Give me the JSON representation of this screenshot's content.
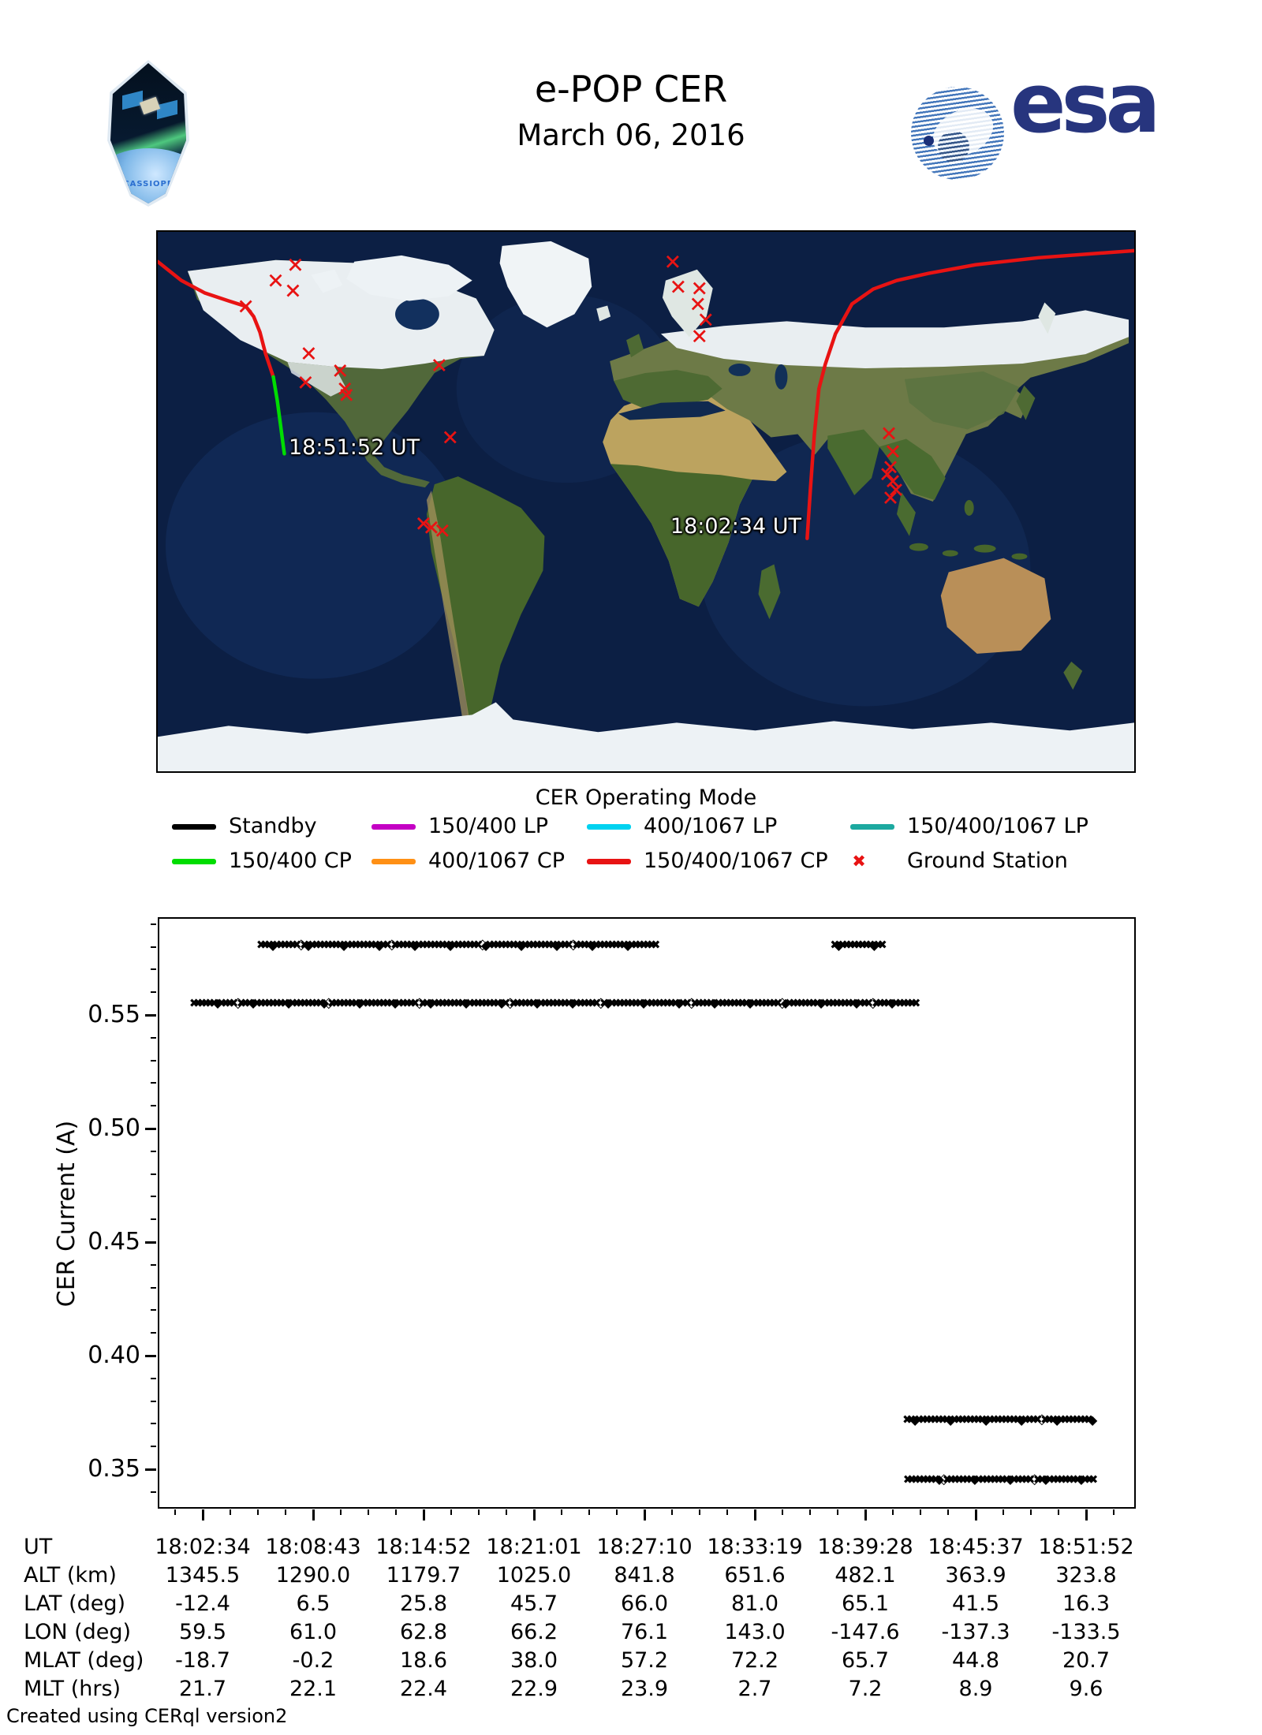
{
  "header": {
    "title": "e-POP CER",
    "date": "March 06, 2016",
    "patch_text": "CASSIOPE",
    "esa_text": "esa"
  },
  "map": {
    "caption": "CER Operating Mode",
    "annotations": [
      {
        "text": "18:51:52 UT",
        "map_x": 166,
        "map_y": 258,
        "align": "left"
      },
      {
        "text": "18:02:34 UT",
        "map_x": 820,
        "map_y": 358,
        "align": "right"
      }
    ],
    "tracks": [
      {
        "name": "orbit-track-150-400-1067-cp-west",
        "mode": "150/400/1067 CP",
        "color": "#e81313",
        "points": [
          [
            0,
            38
          ],
          [
            30,
            62
          ],
          [
            60,
            78
          ],
          [
            90,
            88
          ],
          [
            112,
            95
          ],
          [
            122,
            108
          ],
          [
            130,
            128
          ],
          [
            137,
            155
          ],
          [
            147,
            185
          ]
        ]
      },
      {
        "name": "orbit-track-150-400-cp",
        "mode": "150/400 CP",
        "color": "#00dd00",
        "points": [
          [
            147,
            185
          ],
          [
            152,
            215
          ],
          [
            156,
            245
          ],
          [
            159,
            268
          ],
          [
            161,
            283
          ]
        ]
      },
      {
        "name": "orbit-track-150-400-1067-cp-east",
        "mode": "150/400/1067 CP",
        "color": "#e81313",
        "points": [
          [
            826,
            391
          ],
          [
            830,
            330
          ],
          [
            835,
            260
          ],
          [
            841,
            200
          ],
          [
            849,
            169
          ],
          [
            862,
            130
          ],
          [
            883,
            92
          ],
          [
            910,
            73
          ],
          [
            940,
            62
          ],
          [
            980,
            53
          ],
          [
            1040,
            42
          ],
          [
            1120,
            33
          ],
          [
            1242,
            24
          ]
        ]
      }
    ],
    "stations": [
      [
        175,
        42
      ],
      [
        150,
        62
      ],
      [
        172,
        75
      ],
      [
        112,
        95
      ],
      [
        192,
        155
      ],
      [
        188,
        192
      ],
      [
        232,
        177
      ],
      [
        238,
        200
      ],
      [
        240,
        208
      ],
      [
        358,
        170
      ],
      [
        372,
        262
      ],
      [
        338,
        372
      ],
      [
        348,
        377
      ],
      [
        362,
        381
      ],
      [
        655,
        38
      ],
      [
        662,
        70
      ],
      [
        689,
        72
      ],
      [
        687,
        92
      ],
      [
        697,
        112
      ],
      [
        689,
        133
      ],
      [
        930,
        257
      ],
      [
        935,
        280
      ],
      [
        932,
        300
      ],
      [
        928,
        309
      ],
      [
        935,
        318
      ],
      [
        939,
        329
      ],
      [
        932,
        339
      ]
    ],
    "station_color": "#e81313"
  },
  "legend": {
    "rows": [
      [
        {
          "label": "Standby",
          "color": "#000000",
          "marker": "line"
        },
        {
          "label": "150/400 LP",
          "color": "#c400c4",
          "marker": "line"
        },
        {
          "label": "400/1067 LP",
          "color": "#00d2f0",
          "marker": "line"
        },
        {
          "label": "150/400/1067 LP",
          "color": "#1ca9a0",
          "marker": "line"
        }
      ],
      [
        {
          "label": "150/400 CP",
          "color": "#00dd00",
          "marker": "line"
        },
        {
          "label": "400/1067 CP",
          "color": "#ff9015",
          "marker": "line"
        },
        {
          "label": "150/400/1067 CP",
          "color": "#e81313",
          "marker": "line"
        },
        {
          "label": "Ground Station",
          "color": "#e81313",
          "marker": "x"
        }
      ]
    ]
  },
  "chart_data": {
    "type": "scatter",
    "title": "",
    "xlabel": "",
    "ylabel": "CER Current (A)",
    "ylim": [
      0.333,
      0.593
    ],
    "y_ticks": [
      0.55,
      0.5,
      0.45,
      0.4,
      0.35
    ],
    "x_tick_labels": [
      "18:02:34",
      "18:08:43",
      "18:14:52",
      "18:21:01",
      "18:27:10",
      "18:33:19",
      "18:39:28",
      "18:45:37",
      "18:51:52"
    ],
    "series_name": "Standby",
    "marker_color": "#000000",
    "bands": [
      {
        "current": 0.58,
        "start": "18:05:54",
        "end": "18:27:52"
      },
      {
        "current": 0.58,
        "start": "18:37:51",
        "end": "18:40:34"
      },
      {
        "current": 0.5545,
        "start": "18:02:10",
        "end": "18:42:33"
      },
      {
        "current": 0.371,
        "start": "18:41:53",
        "end": "18:52:15"
      },
      {
        "current": 0.3448,
        "start": "18:41:55",
        "end": "18:52:20"
      }
    ]
  },
  "table": {
    "rows": [
      {
        "label": "UT",
        "values": [
          "18:02:34",
          "18:08:43",
          "18:14:52",
          "18:21:01",
          "18:27:10",
          "18:33:19",
          "18:39:28",
          "18:45:37",
          "18:51:52"
        ]
      },
      {
        "label": "ALT (km)",
        "values": [
          "1345.5",
          "1290.0",
          "1179.7",
          "1025.0",
          "841.8",
          "651.6",
          "482.1",
          "363.9",
          "323.8"
        ]
      },
      {
        "label": "LAT (deg)",
        "values": [
          "-12.4",
          "6.5",
          "25.8",
          "45.7",
          "66.0",
          "81.0",
          "65.1",
          "41.5",
          "16.3"
        ]
      },
      {
        "label": "LON (deg)",
        "values": [
          "59.5",
          "61.0",
          "62.8",
          "66.2",
          "76.1",
          "143.0",
          "-147.6",
          "-137.3",
          "-133.5"
        ]
      },
      {
        "label": "MLAT (deg)",
        "values": [
          "-18.7",
          "-0.2",
          "18.6",
          "38.0",
          "57.2",
          "72.2",
          "65.7",
          "44.8",
          "20.7"
        ]
      },
      {
        "label": "MLT (hrs)",
        "values": [
          "21.7",
          "22.1",
          "22.4",
          "22.9",
          "23.9",
          "2.7",
          "7.2",
          "8.9",
          "9.6"
        ]
      }
    ]
  },
  "footer": "Created using CERql version2"
}
